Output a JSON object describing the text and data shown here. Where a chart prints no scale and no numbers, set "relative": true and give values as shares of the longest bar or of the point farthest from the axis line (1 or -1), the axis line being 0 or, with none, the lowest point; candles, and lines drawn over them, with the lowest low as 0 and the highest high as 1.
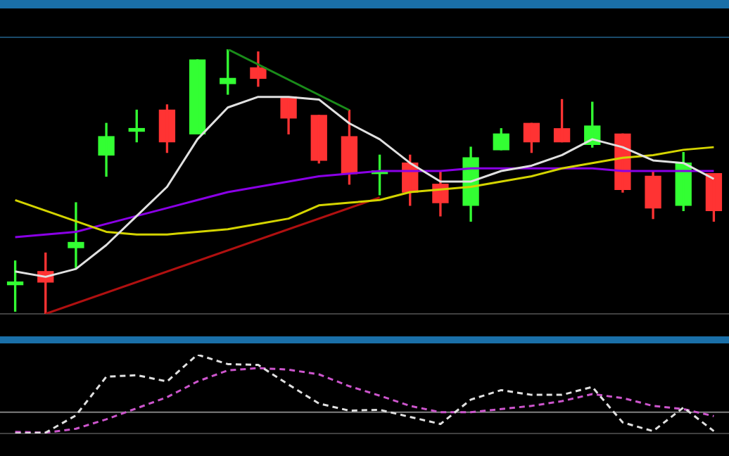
{
  "chart_data": [
    {
      "type": "candlestick",
      "relative": true,
      "categories": [
        null,
        null,
        null,
        null,
        null,
        null,
        null,
        null,
        null,
        null,
        null,
        null,
        null,
        null,
        null,
        null,
        null,
        null,
        null,
        null,
        null,
        null,
        null,
        null
      ],
      "ohlc": [
        [
          0.11,
          0.2,
          0.01,
          0.12
        ],
        [
          0.16,
          0.23,
          0.0,
          0.12
        ],
        [
          0.25,
          0.42,
          0.17,
          0.27
        ],
        [
          0.6,
          0.72,
          0.52,
          0.67
        ],
        [
          0.69,
          0.77,
          0.65,
          0.7
        ],
        [
          0.77,
          0.79,
          0.61,
          0.65
        ],
        [
          0.68,
          0.96,
          0.68,
          0.96
        ],
        [
          0.87,
          1.0,
          0.83,
          0.89
        ],
        [
          0.93,
          0.99,
          0.86,
          0.89
        ],
        [
          0.82,
          0.82,
          0.68,
          0.74
        ],
        [
          0.75,
          0.75,
          0.57,
          0.58
        ],
        [
          0.67,
          0.77,
          0.49,
          0.53
        ],
        [
          0.53,
          0.6,
          0.45,
          0.54
        ],
        [
          0.57,
          0.6,
          0.41,
          0.46
        ],
        [
          0.49,
          0.54,
          0.37,
          0.42
        ],
        [
          0.41,
          0.63,
          0.35,
          0.59
        ],
        [
          0.62,
          0.7,
          0.62,
          0.68
        ],
        [
          0.72,
          0.72,
          0.61,
          0.65
        ],
        [
          0.7,
          0.81,
          0.65,
          0.65
        ],
        [
          0.64,
          0.8,
          0.63,
          0.71
        ],
        [
          0.68,
          0.68,
          0.46,
          0.47
        ],
        [
          0.52,
          0.54,
          0.36,
          0.4
        ],
        [
          0.41,
          0.61,
          0.39,
          0.57
        ],
        [
          0.53,
          0.53,
          0.35,
          0.39
        ]
      ],
      "colors": [
        "#33ff33",
        "#ff3333",
        "#33ff33",
        "#33ff33",
        "#33ff33",
        "#ff3333",
        "#33ff33",
        "#33ff33",
        "#ff3333",
        "#ff3333",
        "#ff3333",
        "#ff3333",
        "#33ff33",
        "#ff3333",
        "#ff3333",
        "#33ff33",
        "#33ff33",
        "#ff3333",
        "#ff3333",
        "#33ff33",
        "#ff3333",
        "#ff3333",
        "#33ff33",
        "#ff3333"
      ],
      "series": [
        {
          "type": "line",
          "color": "#e0e0e0",
          "values": [
            0.16,
            0.14,
            0.17,
            0.26,
            0.37,
            0.48,
            0.66,
            0.78,
            0.82,
            0.82,
            0.81,
            0.72,
            0.66,
            0.57,
            0.5,
            0.5,
            0.54,
            0.56,
            0.6,
            0.66,
            0.63,
            0.58,
            0.57,
            0.51
          ]
        },
        {
          "type": "line",
          "color": "#d4d400",
          "values": [
            0.43,
            0.39,
            0.35,
            0.31,
            0.3,
            0.3,
            0.31,
            0.32,
            0.34,
            0.36,
            0.41,
            0.42,
            0.43,
            0.46,
            0.47,
            0.48,
            0.5,
            0.52,
            0.55,
            0.57,
            0.59,
            0.6,
            0.62,
            0.63
          ]
        },
        {
          "type": "line",
          "color": "#8a00e6",
          "values": [
            0.29,
            0.3,
            0.31,
            0.34,
            0.37,
            0.4,
            0.43,
            0.46,
            0.48,
            0.5,
            0.52,
            0.53,
            0.54,
            0.54,
            0.54,
            0.55,
            0.55,
            0.55,
            0.55,
            0.55,
            0.54,
            0.54,
            0.54,
            0.54
          ]
        },
        {
          "type": "line",
          "color": "#1a8c1a",
          "values": [
            null,
            null,
            null,
            null,
            null,
            null,
            null,
            1.0,
            null,
            null,
            null,
            0.77,
            null,
            null,
            null,
            null,
            null,
            null,
            null,
            null,
            null,
            null,
            null,
            null
          ]
        },
        {
          "type": "line",
          "color": "#b01010",
          "values": [
            null,
            0.0,
            null,
            null,
            null,
            null,
            null,
            null,
            null,
            null,
            null,
            null,
            0.44,
            null,
            null,
            null,
            null,
            null,
            null,
            null,
            null,
            null,
            null,
            null
          ]
        }
      ]
    },
    {
      "type": "line",
      "relative": true,
      "line_style": "dashed",
      "categories": [
        null,
        null,
        null,
        null,
        null,
        null,
        null,
        null,
        null,
        null,
        null,
        null,
        null,
        null,
        null,
        null,
        null,
        null,
        null,
        null,
        null,
        null,
        null,
        null
      ],
      "series": [
        {
          "color": "#e0e0e0",
          "values": [
            0,
            0.01,
            0.23,
            0.72,
            0.74,
            0.66,
            1,
            0.88,
            0.87,
            0.62,
            0.38,
            0.29,
            0.3,
            0.21,
            0.12,
            0.43,
            0.55,
            0.49,
            0.49,
            0.59,
            0.14,
            0.03,
            0.33,
            0.03
          ]
        },
        {
          "color": "#cc55cc",
          "values": [
            0.02,
            0.01,
            0.06,
            0.18,
            0.32,
            0.46,
            0.66,
            0.8,
            0.83,
            0.81,
            0.75,
            0.6,
            0.48,
            0.35,
            0.27,
            0.27,
            0.31,
            0.35,
            0.41,
            0.5,
            0.45,
            0.35,
            0.31,
            0.22
          ]
        }
      ],
      "ref_lines": [
        {
          "axis": "y",
          "value": 0.27,
          "color": "#808080"
        }
      ]
    }
  ]
}
